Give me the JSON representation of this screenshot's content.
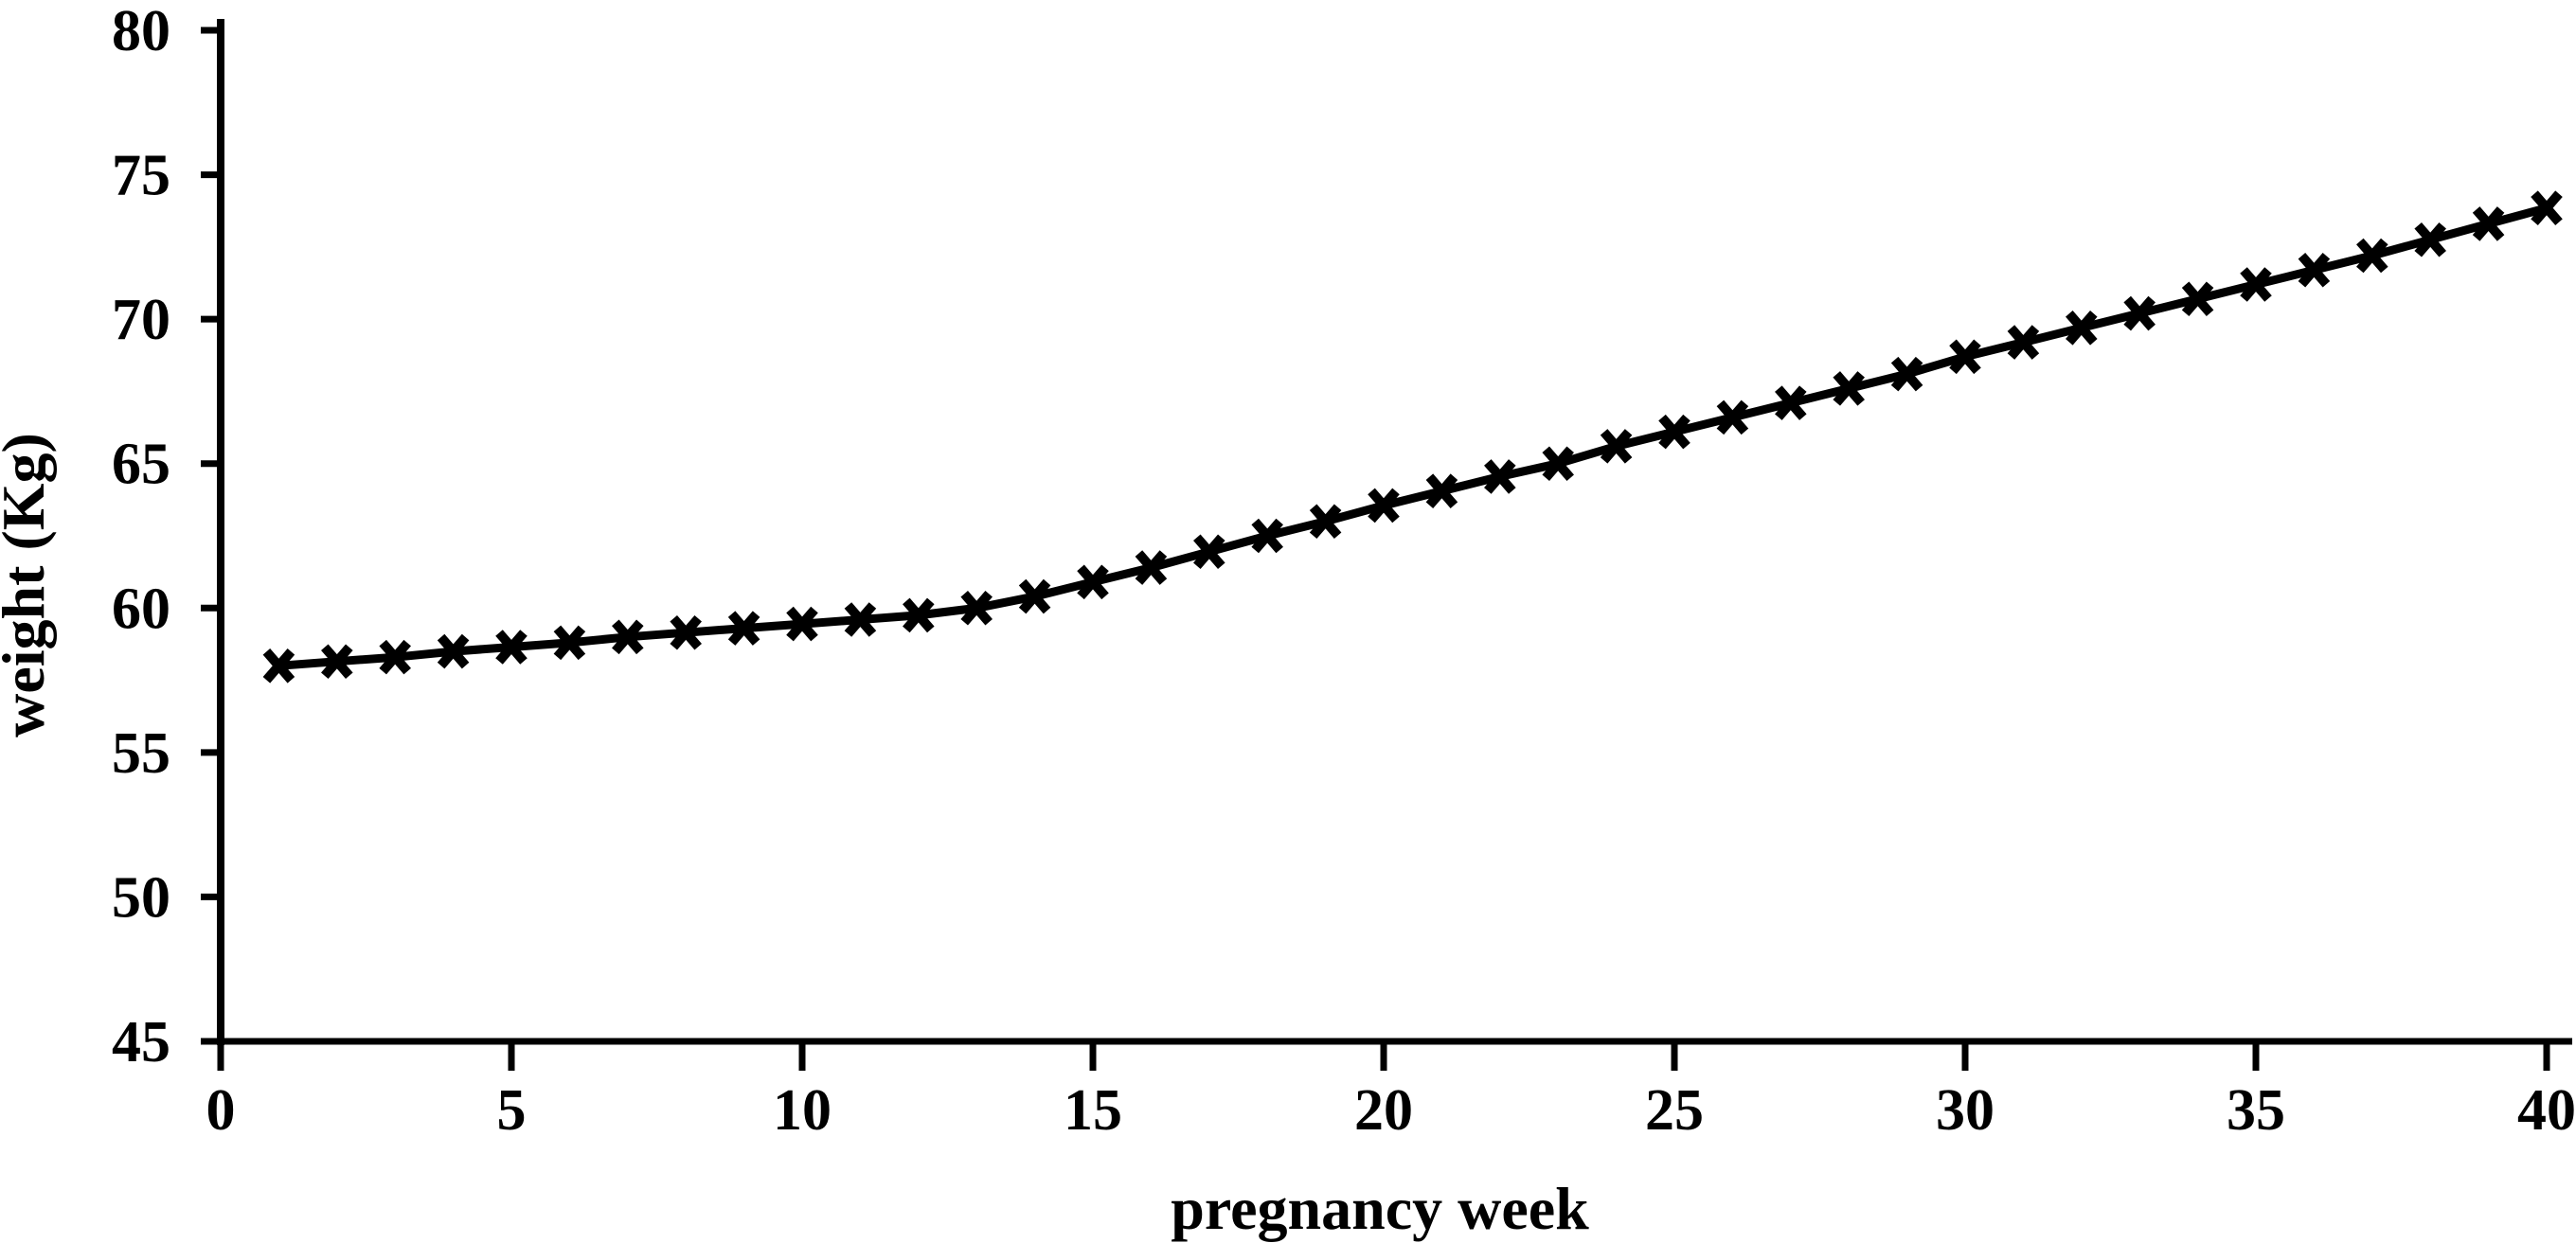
{
  "figure": {
    "background": "#ffffff",
    "ink": "#000000"
  },
  "chart_data": {
    "type": "line",
    "title": "",
    "xlabel": "pregnancy week",
    "ylabel": "weight (Kg)",
    "series_name": "weight",
    "marker": "x",
    "line_color": "#000000",
    "grid": "off",
    "legend": "none",
    "xlim": [
      0,
      40
    ],
    "ylim": [
      45,
      80
    ],
    "x_ticks": [
      0,
      5,
      10,
      15,
      20,
      25,
      30,
      35,
      40
    ],
    "y_ticks": [
      45,
      50,
      55,
      60,
      65,
      70,
      75,
      80
    ],
    "x": [
      1,
      2,
      3,
      4,
      5,
      6,
      7,
      8,
      9,
      10,
      11,
      12,
      13,
      14,
      15,
      16,
      17,
      18,
      19,
      20,
      21,
      22,
      23,
      24,
      25,
      26,
      27,
      28,
      29,
      30,
      31,
      32,
      33,
      34,
      35,
      36,
      37,
      38,
      39,
      40
    ],
    "values": [
      58.0,
      58.15,
      58.3,
      58.5,
      58.65,
      58.8,
      59.0,
      59.15,
      59.3,
      59.45,
      59.6,
      59.75,
      60.0,
      60.4,
      60.9,
      61.4,
      61.95,
      62.5,
      63.0,
      63.55,
      64.05,
      64.55,
      65.0,
      65.6,
      66.1,
      66.6,
      67.1,
      67.6,
      68.1,
      68.7,
      69.2,
      69.7,
      70.2,
      70.7,
      71.2,
      71.7,
      72.2,
      72.75,
      73.3,
      73.85
    ]
  }
}
